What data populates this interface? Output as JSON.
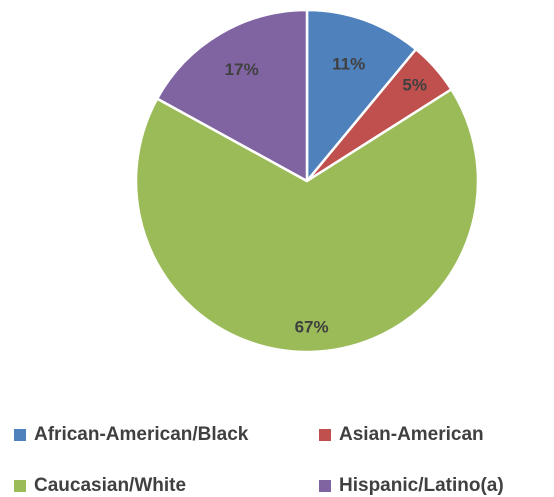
{
  "chart_data": {
    "type": "pie",
    "title": "",
    "legend_position": "bottom",
    "slices": [
      {
        "name": "African-American/Black",
        "value": 11,
        "label": "11%",
        "color": "#4f81bd"
      },
      {
        "name": "Asian-American",
        "value": 5,
        "label": "5%",
        "color": "#c0504d"
      },
      {
        "name": "Caucasian/White",
        "value": 67,
        "label": "67%",
        "color": "#9bbb59"
      },
      {
        "name": "Hispanic/Latino(a)",
        "value": 17,
        "label": "17%",
        "color": "#8064a2"
      }
    ]
  }
}
